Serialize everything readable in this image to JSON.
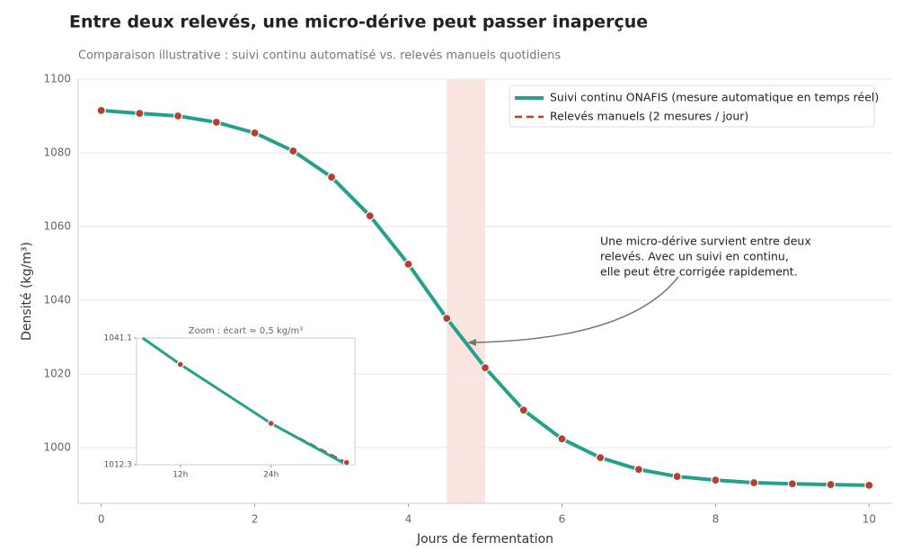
{
  "chart_data": {
    "type": "line",
    "title": "Entre deux relevés, une micro-dérive peut passer inaperçue",
    "subtitle": "Comparaison illustrative : suivi continu automatisé vs. relevés manuels quotidiens",
    "x_label": "Jours de fermentation",
    "y_label": "Densité (kg/m³)",
    "x": [
      0,
      0.5,
      1,
      1.5,
      2,
      2.5,
      3,
      3.5,
      4,
      4.5,
      5,
      5.5,
      6,
      6.5,
      7,
      7.5,
      8,
      8.5,
      9,
      9.5,
      10
    ],
    "series": [
      {
        "name": "Suivi continu ONAFIS (mesure automatique en temps réel)",
        "color": "#26a08a",
        "values": [
          1091.5,
          1090.7,
          1090,
          1088.3,
          1085.4,
          1080.5,
          1073.4,
          1062.9,
          1049.8,
          1035.1,
          1021.7,
          1010.2,
          1002.4,
          997.3,
          994.1,
          992.2,
          991.2,
          990.5,
          990.2,
          990,
          989.8
        ]
      },
      {
        "name": "Relevés manuels (2 mesures / jour)",
        "color": "#b5402f",
        "values": [
          1091.5,
          1090.7,
          1090,
          1088.3,
          1085.4,
          1080.5,
          1073.4,
          1062.9,
          1049.8,
          1035.1,
          1021.7,
          1010.2,
          1002.4,
          997.3,
          994.1,
          992.2,
          991.2,
          990.5,
          990.2,
          990,
          989.8
        ]
      }
    ],
    "xlim": [
      -0.3,
      10.3
    ],
    "ylim": [
      984.9,
      1100
    ],
    "xticks": [
      0,
      2,
      4,
      6,
      8,
      10
    ],
    "yticks": [
      1000,
      1020,
      1040,
      1060,
      1080,
      1100
    ],
    "grid": true,
    "legend": "upper right",
    "highlight": {
      "x": [
        4.5,
        5
      ],
      "color": "#fbe5e1"
    },
    "annotation": [
      "Une micro-dérive survient entre deux",
      "relevés. Avec un suivi en continu,",
      "elle peut être corrigée rapidement."
    ],
    "inset": {
      "title": "Zoom : écart ≈ 0,5 kg/m³",
      "xlim": [
        6.2,
        35.1
      ],
      "ylim": [
        1012.3,
        1041.1
      ],
      "xticks": [
        {
          "value": 12,
          "label": "12h"
        },
        {
          "value": 24,
          "label": "24h"
        }
      ],
      "yticks": [
        1012.3,
        1041.1
      ],
      "series": [
        {
          "x": [
            7,
            12,
            24,
            34
          ],
          "values": [
            1041.1,
            1035.1,
            1021.7,
            1012.3
          ]
        },
        {
          "x": [
            12,
            24,
            34
          ],
          "values": [
            1035.1,
            1021.7,
            1012.8
          ]
        }
      ]
    }
  }
}
